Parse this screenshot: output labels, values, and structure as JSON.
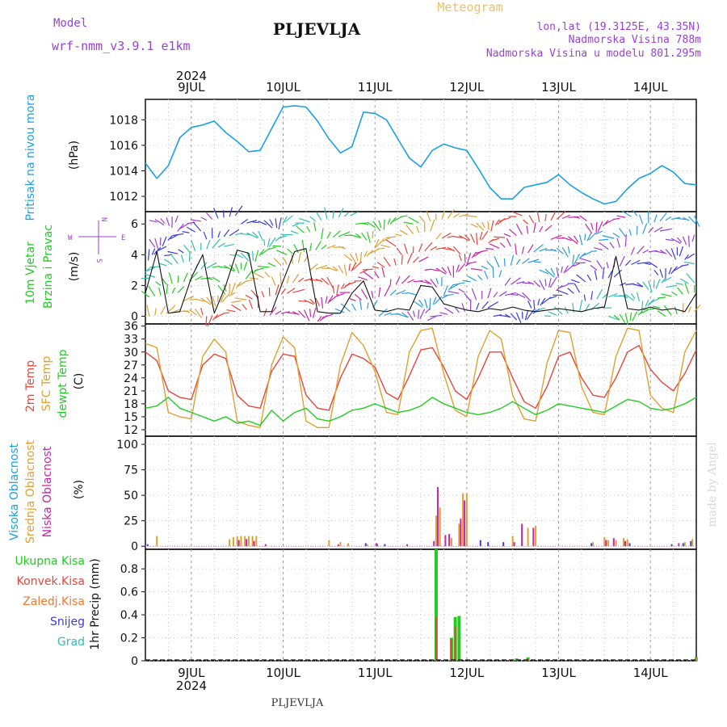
{
  "header": {
    "model_label": "Model",
    "model_value": "wrf-nmm_v3.9.1  e1km",
    "station": "PLJEVLJA",
    "meteogram_label": "Meteogram",
    "coords": "lon,lat (19.3125E, 43.35N)",
    "elevation": "Nadmorska Visina 788m",
    "model_elevation": "Nadmorska Visina u modelu 801.295m",
    "footer_station": "PLJEVLJA",
    "credit": "made by Angel"
  },
  "colors": {
    "pressure": "#1aa0e6",
    "red": "#e8453c",
    "orange": "#e0a030",
    "green": "#22cc22",
    "magenta": "#cc22aa",
    "purple": "#9b3fd6",
    "blue": "#3b3be0",
    "teal": "#30c0b0",
    "gray_text": "#666666"
  },
  "time_axis": {
    "year": "2024",
    "top_labels": [
      "9JUL",
      "10JUL",
      "11JUL",
      "12JUL",
      "13JUL",
      "14JUL"
    ],
    "bottom_labels": [
      "9JUL",
      "10JUL",
      "11JUL",
      "12JUL",
      "13JUL",
      "14JUL"
    ],
    "start_hour": 0,
    "end_hour": 144
  },
  "panel_labels": {
    "pressure": {
      "title": "Pritisak na nivou mora",
      "unit": "(hPa)"
    },
    "wind": {
      "title1": "10m Vjetar",
      "title2": "Brzina i Pravac",
      "unit": "(m/s)",
      "compass_n": "N",
      "compass_s": "S",
      "compass_w": "W",
      "compass_e": "E"
    },
    "temp": {
      "t2m": "2m Temp",
      "sfc": "SFC Temp",
      "dew": "dewpt Temp",
      "unit": "(C)"
    },
    "cloud": {
      "high": "Visoka Oblacnost",
      "mid": "Srednja Oblacnost",
      "low": "Niska Oblacnost",
      "unit": "(%)"
    },
    "precip": {
      "total": "Ukupna Kisa",
      "conv": "Konvek.Kisa",
      "frz": "Zaledj.Kisa",
      "snow": "Snijeg",
      "hail": "Grad",
      "unit": "1hr Precip (mm)"
    }
  },
  "chart_data": [
    {
      "type": "line",
      "title": "Pritisak na nivou mora",
      "ylabel": "(hPa)",
      "ylim": [
        1010.8,
        1019.6
      ],
      "yticks": [
        "1012",
        "1014",
        "1016",
        "1018"
      ],
      "x": [
        0,
        3,
        6,
        9,
        12,
        15,
        18,
        21,
        24,
        27,
        30,
        33,
        36,
        39,
        42,
        45,
        48,
        51,
        54,
        57,
        60,
        63,
        66,
        69,
        72,
        75,
        78,
        81,
        84,
        87,
        90,
        93,
        96,
        99,
        102,
        105,
        108,
        111,
        114,
        117,
        120,
        123,
        126,
        129,
        132,
        135,
        138,
        141,
        144
      ],
      "series": [
        {
          "values": [
            1014.6,
            1013.4,
            1014.4,
            1016.6,
            1017.4,
            1017.6,
            1017.9,
            1017.0,
            1016.3,
            1015.5,
            1015.6,
            1017.3,
            1019.0,
            1019.1,
            1019.0,
            1017.9,
            1016.5,
            1015.4,
            1015.9,
            1018.6,
            1018.5,
            1018.0,
            1016.5,
            1015.0,
            1014.3,
            1015.6,
            1016.1,
            1015.8,
            1015.6,
            1014.2,
            1012.7,
            1011.8,
            1011.8,
            1012.7,
            1012.9,
            1013.1,
            1013.7,
            1012.9,
            1012.3,
            1011.8,
            1011.4,
            1011.6,
            1012.6,
            1013.4,
            1013.8,
            1014.4,
            1013.9,
            1013.0,
            1012.9
          ]
        }
      ]
    },
    {
      "type": "line",
      "title": "10m Vjetar Brzina i Pravac",
      "ylabel": "(m/s)",
      "ylim": [
        -0.5,
        6.8
      ],
      "yticks": [
        "0",
        "2",
        "4",
        "6"
      ],
      "x": [
        0,
        3,
        6,
        9,
        12,
        15,
        18,
        21,
        24,
        27,
        30,
        33,
        36,
        39,
        42,
        45,
        48,
        51,
        54,
        57,
        60,
        63,
        66,
        69,
        72,
        75,
        78,
        81,
        84,
        87,
        90,
        93,
        96,
        99,
        102,
        105,
        108,
        111,
        114,
        117,
        120,
        123,
        126,
        129,
        132,
        135,
        138,
        141,
        144
      ],
      "series": [
        {
          "values": [
            1.5,
            4.2,
            0.2,
            0.3,
            2.5,
            4.0,
            0.2,
            2.0,
            4.3,
            4.1,
            0.3,
            0.3,
            2.3,
            4.2,
            4.4,
            0.3,
            0.2,
            0.2,
            1.5,
            2.3,
            0.4,
            0.3,
            0.5,
            0.4,
            2.0,
            1.9,
            0.8,
            0.6,
            0.4,
            0.3,
            0.5,
            0.4,
            0.6,
            0.4,
            0.3,
            0.4,
            0.5,
            0.4,
            0.3,
            0.5,
            0.6,
            3.9,
            0.5,
            0.4,
            0.6,
            0.4,
            0.5,
            0.3,
            1.5
          ]
        }
      ]
    },
    {
      "type": "line",
      "title": "2m Temp / SFC Temp / dewpt Temp",
      "ylabel": "(C)",
      "ylim": [
        10.5,
        36.5
      ],
      "yticks": [
        "12",
        "15",
        "18",
        "21",
        "24",
        "27",
        "30",
        "33",
        "36"
      ],
      "x": [
        0,
        3,
        6,
        9,
        12,
        15,
        18,
        21,
        24,
        27,
        30,
        33,
        36,
        39,
        42,
        45,
        48,
        51,
        54,
        57,
        60,
        63,
        66,
        69,
        72,
        75,
        78,
        81,
        84,
        87,
        90,
        93,
        96,
        99,
        102,
        105,
        108,
        111,
        114,
        117,
        120,
        123,
        126,
        129,
        132,
        135,
        138,
        141,
        144
      ],
      "series": [
        {
          "name": "2m Temp",
          "values": [
            30.0,
            28.0,
            21.0,
            19.5,
            19.0,
            27.0,
            29.5,
            28.5,
            20.0,
            17.5,
            17.0,
            25.5,
            29.5,
            29.0,
            20.0,
            17.0,
            16.5,
            24.0,
            29.5,
            28.5,
            26.5,
            20.5,
            19.0,
            24.5,
            30.5,
            31.0,
            26.5,
            21.0,
            19.0,
            24.0,
            30.0,
            30.0,
            24.0,
            18.5,
            17.0,
            22.0,
            29.0,
            30.0,
            24.0,
            20.0,
            19.5,
            24.0,
            30.0,
            31.5,
            26.0,
            23.0,
            21.0,
            25.0,
            30.5
          ]
        },
        {
          "name": "SFC Temp",
          "values": [
            32.0,
            31.0,
            16.0,
            15.0,
            14.5,
            29.0,
            33.0,
            30.0,
            14.0,
            13.0,
            12.5,
            27.0,
            33.5,
            31.0,
            14.0,
            12.5,
            12.5,
            27.0,
            34.5,
            31.5,
            25.5,
            16.0,
            15.5,
            30.0,
            35.0,
            35.5,
            25.0,
            16.5,
            15.0,
            29.0,
            35.0,
            33.0,
            20.0,
            14.5,
            14.0,
            27.5,
            35.0,
            34.5,
            22.0,
            16.0,
            15.5,
            29.0,
            35.5,
            35.0,
            20.0,
            17.0,
            16.0,
            30.0,
            35.0
          ]
        },
        {
          "name": "dewpt Temp",
          "values": [
            17.0,
            17.5,
            19.5,
            17.0,
            16.0,
            15.0,
            14.0,
            15.0,
            13.5,
            14.0,
            13.0,
            16.5,
            14.0,
            16.0,
            17.0,
            14.5,
            14.0,
            15.0,
            16.5,
            17.0,
            18.0,
            17.0,
            16.0,
            16.5,
            17.5,
            19.5,
            18.0,
            17.0,
            16.0,
            15.5,
            16.0,
            17.0,
            18.5,
            17.0,
            15.5,
            16.5,
            18.0,
            17.5,
            17.0,
            16.5,
            16.0,
            17.5,
            19.0,
            18.5,
            17.0,
            16.5,
            17.0,
            18.0,
            19.5
          ]
        }
      ]
    },
    {
      "type": "bar",
      "title": "Visoka / Srednja / Niska Oblacnost",
      "ylabel": "(%)",
      "ylim": [
        -3,
        108
      ],
      "yticks": [
        "0",
        "25",
        "50",
        "75",
        "100"
      ],
      "series": [
        {
          "name": "Visoka Oblacnost",
          "points": [
            [
              1,
              2
            ],
            [
              58,
              3
            ],
            [
              61,
              2
            ],
            [
              63,
              2
            ],
            [
              88,
              6
            ],
            [
              90,
              4
            ],
            [
              94,
              4
            ],
            [
              117,
              3
            ],
            [
              127,
              3
            ],
            [
              138,
              2
            ],
            [
              141,
              3
            ],
            [
              143,
              5
            ]
          ]
        },
        {
          "name": "Srednja Oblacnost",
          "points": [
            [
              3,
              10
            ],
            [
              22,
              7
            ],
            [
              23,
              9
            ],
            [
              24,
              10
            ],
            [
              25,
              10
            ],
            [
              26,
              10
            ],
            [
              27,
              10
            ],
            [
              28,
              10
            ],
            [
              29,
              10
            ],
            [
              48,
              6
            ],
            [
              51,
              4
            ],
            [
              53,
              3
            ],
            [
              58,
              2
            ],
            [
              76,
              30
            ],
            [
              77,
              38
            ],
            [
              80,
              8
            ],
            [
              82,
              22
            ],
            [
              83,
              52
            ],
            [
              84,
              52
            ],
            [
              96,
              10
            ],
            [
              100,
              18
            ],
            [
              102,
              20
            ],
            [
              117,
              4
            ],
            [
              120,
              9
            ],
            [
              121,
              6
            ],
            [
              123,
              6
            ],
            [
              125,
              8
            ],
            [
              126,
              7
            ],
            [
              141,
              4
            ],
            [
              143,
              7
            ]
          ]
        },
        {
          "name": "Niska Oblacnost",
          "points": [
            [
              24,
              6
            ],
            [
              26,
              7
            ],
            [
              28,
              5
            ],
            [
              31,
              2
            ],
            [
              50,
              2
            ],
            [
              60,
              3
            ],
            [
              68,
              2
            ],
            [
              75,
              5
            ],
            [
              76,
              58
            ],
            [
              78,
              11
            ],
            [
              79,
              12
            ],
            [
              82,
              27
            ],
            [
              83,
              45
            ],
            [
              96,
              4
            ],
            [
              98,
              22
            ],
            [
              101,
              18
            ],
            [
              120,
              6
            ],
            [
              122,
              8
            ],
            [
              125,
              5
            ],
            [
              139,
              3
            ]
          ]
        }
      ]
    },
    {
      "type": "bar",
      "title": "1hr Precip",
      "ylabel": "1hr Precip (mm)",
      "ylim": [
        0,
        0.97
      ],
      "yticks": [
        "0",
        "0.2",
        "0.4",
        "0.6",
        "0.8"
      ],
      "series": [
        {
          "name": "Ukupna Kisa",
          "points": [
            [
              76,
              0.97
            ],
            [
              80,
              0.2
            ],
            [
              81,
              0.38
            ],
            [
              82,
              0.39
            ],
            [
              97,
              0.02
            ],
            [
              100,
              0.03
            ],
            [
              144,
              0.03
            ]
          ]
        },
        {
          "name": "Konvek.Kisa",
          "points": [
            [
              76,
              0.38
            ],
            [
              80,
              0.19
            ],
            [
              81,
              0.3
            ],
            [
              100,
              0.02
            ]
          ]
        },
        {
          "name": "Zaledj.Kisa",
          "points": [
            [
              144,
              0.03
            ]
          ]
        }
      ]
    }
  ]
}
